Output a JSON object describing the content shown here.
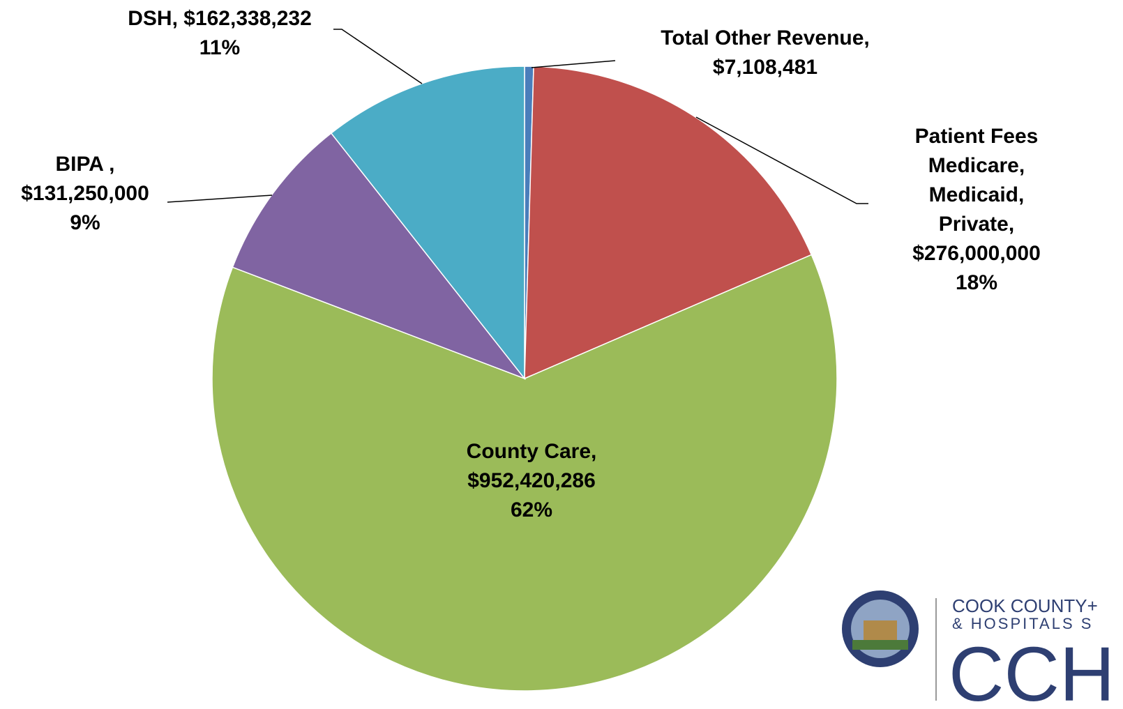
{
  "chart_data": {
    "type": "pie",
    "categories": [
      "Total Other Revenue,",
      "Patient Fees\nMedicare,\nMedicaid, Private,",
      "County Care,",
      "BIPA ,",
      "DSH,"
    ],
    "values": [
      7108481,
      276000000,
      952420286,
      131250000,
      162338232
    ],
    "value_labels": [
      "$7,108,481",
      "$276,000,000",
      "$952,420,286",
      "$131,250,000",
      "$162,338,232"
    ],
    "percent_labels": [
      null,
      "18%",
      "62%",
      "9%",
      "11%"
    ],
    "colors": [
      "#4a7ebb",
      "#c0504d",
      "#9bbb59",
      "#8064a2",
      "#4bacc6"
    ]
  },
  "logo": {
    "line1": "COOK COUNTY+",
    "line2": "& HOSPITALS S",
    "mark": "CCH"
  }
}
